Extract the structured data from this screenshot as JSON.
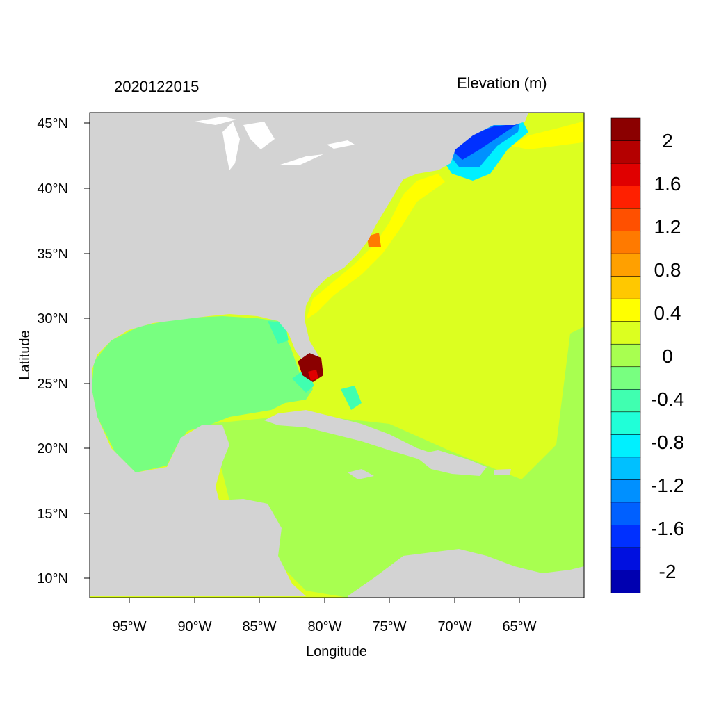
{
  "header": {
    "timestamp": "2020122015",
    "variable": "Elevation (m)"
  },
  "axes": {
    "xlabel": "Longitude",
    "ylabel": "Latitude",
    "x_ticks": [
      "95°W",
      "90°W",
      "85°W",
      "80°W",
      "75°W",
      "70°W",
      "65°W"
    ],
    "y_ticks": [
      "45°N",
      "40°N",
      "35°N",
      "30°N",
      "25°N",
      "20°N",
      "15°N",
      "10°N"
    ],
    "lon_range": [
      -98,
      -60
    ],
    "lat_range": [
      8.5,
      46
    ]
  },
  "colorbar": {
    "labels": [
      "2",
      "1.6",
      "1.2",
      "0.8",
      "0.4",
      "0",
      "-0.4",
      "-0.8",
      "-1.2",
      "-1.6",
      "-2"
    ],
    "colors": [
      "#8b0000",
      "#b40000",
      "#e00000",
      "#ff2000",
      "#ff5000",
      "#ff7a00",
      "#ffa000",
      "#ffc800",
      "#ffff00",
      "#dcff20",
      "#a8ff50",
      "#78ff80",
      "#40ffb0",
      "#20ffd8",
      "#00f0ff",
      "#00c0ff",
      "#0090ff",
      "#0060ff",
      "#0030ff",
      "#0010e0",
      "#0000b0"
    ]
  },
  "map": {
    "land_color": "#d3d3d3",
    "ocean_base_color": "#dcff20"
  }
}
